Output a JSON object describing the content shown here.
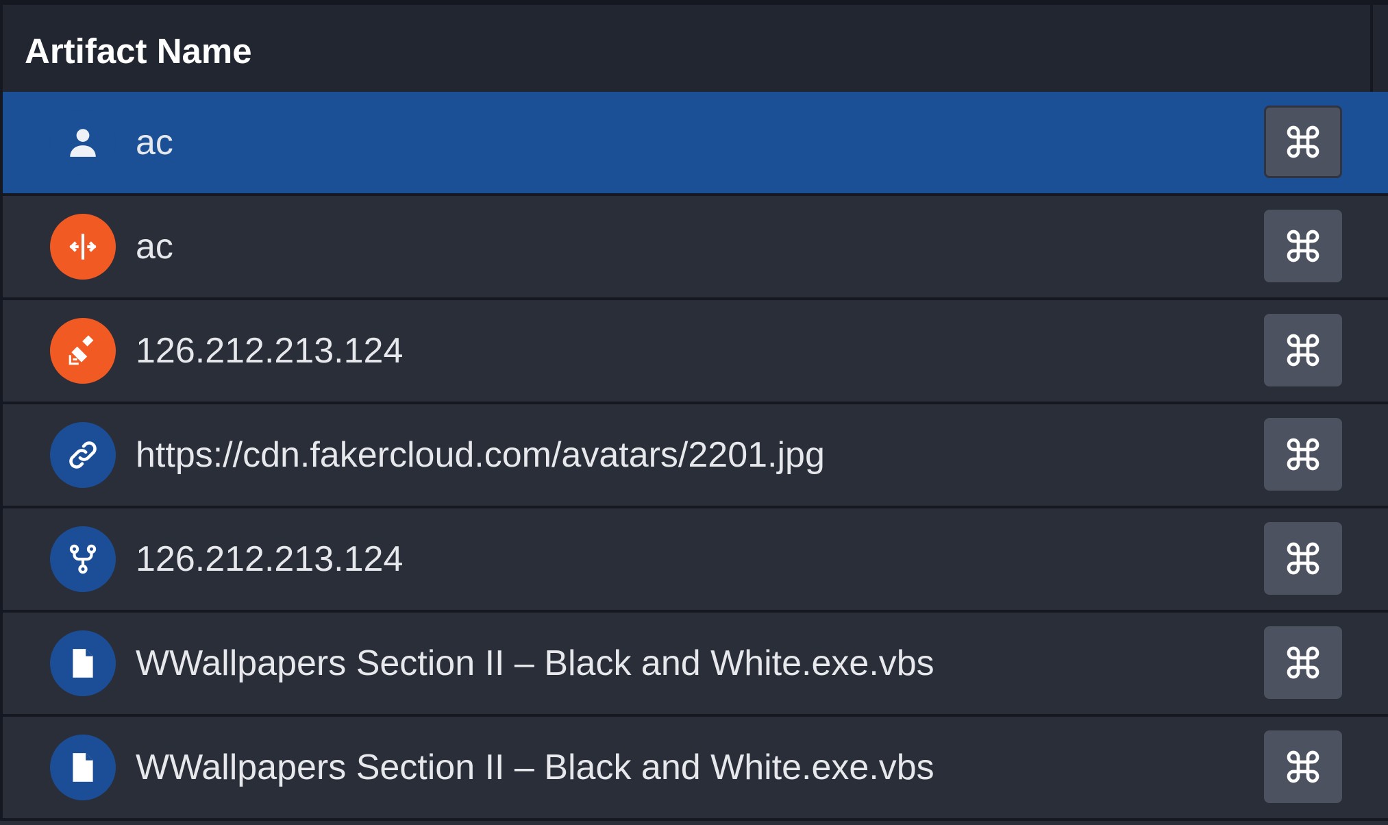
{
  "table": {
    "column_header": "Artifact Name",
    "rows": [
      {
        "name": "ac",
        "icon": "person-icon",
        "icon_bg": "#1b4f96",
        "selected": true
      },
      {
        "name": "ac",
        "icon": "split-arrows-icon",
        "icon_bg": "#f15a22",
        "selected": false
      },
      {
        "name": "126.212.213.124",
        "icon": "broom-icon",
        "icon_bg": "#f15a22",
        "selected": false
      },
      {
        "name": "https://cdn.fakercloud.com/avatars/2201.jpg",
        "icon": "link-icon",
        "icon_bg": "#1c4e98",
        "selected": false
      },
      {
        "name": "126.212.213.124",
        "icon": "fork-icon",
        "icon_bg": "#1c4e98",
        "selected": false
      },
      {
        "name": "WWallpapers Section II – Black and White.exe.vbs",
        "icon": "file-icon",
        "icon_bg": "#1c4e98",
        "selected": false
      },
      {
        "name": "WWallpapers Section II – Black and White.exe.vbs",
        "icon": "file-icon",
        "icon_bg": "#1c4e98",
        "selected": false
      }
    ],
    "action_icon": "command-key-icon"
  },
  "colors": {
    "selected_row": "#1b4f96",
    "row_bg": "#2a2e39",
    "header_bg": "#222631",
    "button_bg": "#4c5260"
  }
}
